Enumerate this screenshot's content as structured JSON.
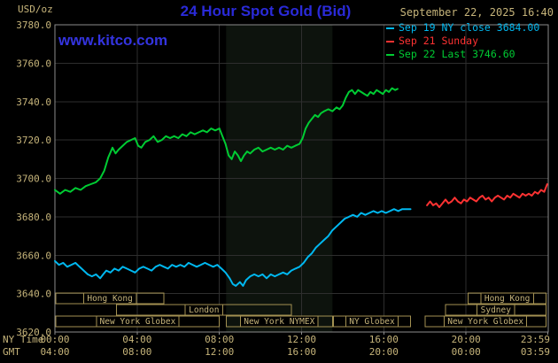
{
  "header": {
    "unit_label": "USD/oz",
    "title": "24 Hour Spot Gold (Bid)",
    "datetime": "September 22, 2025 16:40",
    "watermark": "www.kitco.com"
  },
  "legend": [
    {
      "label": "Sep 19 NY close 3684.00",
      "color": "#00b8f0"
    },
    {
      "label": "Sep 21 Sunday",
      "color": "#ff3232"
    },
    {
      "label": "Sep 22 Last 3746.60",
      "color": "#00cc33"
    }
  ],
  "axes": {
    "ny_time_label": "NY Time",
    "gmt_label": "GMT",
    "ny_ticks": [
      "00:00",
      "04:00",
      "08:00",
      "12:00",
      "16:00",
      "20:00",
      "23:59"
    ],
    "gmt_ticks": [
      "04:00",
      "08:00",
      "12:00",
      "16:00",
      "20:00",
      "00:00",
      "03:59"
    ],
    "y_ticks": [
      3780,
      3760,
      3740,
      3720,
      3700,
      3680,
      3660,
      3640,
      3620
    ]
  },
  "colors": {
    "background": "#000000",
    "title_blue": "#2a2ad8",
    "watermark_blue": "#3434e0",
    "tan": "#c6b47a",
    "session_border": "#a39152",
    "grid": "#2e2e2e",
    "border": "#8c8c8c",
    "band": "#0d130d"
  },
  "chart_data": {
    "type": "line",
    "title": "24 Hour Spot Gold (Bid)",
    "ylabel": "USD/oz",
    "ylim": [
      3620,
      3780
    ],
    "xlim_hours": [
      0,
      24
    ],
    "x_grid_hours": [
      4,
      8,
      12,
      16,
      20
    ],
    "tick_hours": [
      0,
      4,
      8,
      12,
      16,
      20,
      23.983
    ],
    "grid": true,
    "legend_position": "top-right",
    "highlight_band": {
      "start": 8.33,
      "end": 13.5
    },
    "series": [
      {
        "id": "sep19-ny-close",
        "name": "Sep 19 NY close 3684.00",
        "color": "#00b8f0",
        "last_value": 3684.0,
        "points": [
          [
            0,
            3657
          ],
          [
            0.2,
            3655
          ],
          [
            0.4,
            3656
          ],
          [
            0.6,
            3654
          ],
          [
            0.8,
            3655
          ],
          [
            1,
            3656
          ],
          [
            1.2,
            3654
          ],
          [
            1.4,
            3652
          ],
          [
            1.6,
            3650
          ],
          [
            1.8,
            3649
          ],
          [
            2,
            3650
          ],
          [
            2.2,
            3648
          ],
          [
            2.35,
            3650
          ],
          [
            2.5,
            3652
          ],
          [
            2.7,
            3651
          ],
          [
            2.9,
            3653
          ],
          [
            3.1,
            3652
          ],
          [
            3.3,
            3654
          ],
          [
            3.5,
            3653
          ],
          [
            3.7,
            3652
          ],
          [
            3.9,
            3651
          ],
          [
            4.1,
            3653
          ],
          [
            4.3,
            3654
          ],
          [
            4.5,
            3653
          ],
          [
            4.7,
            3652
          ],
          [
            4.9,
            3654
          ],
          [
            5.1,
            3655
          ],
          [
            5.3,
            3654
          ],
          [
            5.5,
            3653
          ],
          [
            5.7,
            3655
          ],
          [
            5.9,
            3654
          ],
          [
            6.1,
            3655
          ],
          [
            6.3,
            3654
          ],
          [
            6.5,
            3656
          ],
          [
            6.7,
            3655
          ],
          [
            6.9,
            3654
          ],
          [
            7.1,
            3655
          ],
          [
            7.3,
            3656
          ],
          [
            7.5,
            3655
          ],
          [
            7.7,
            3654
          ],
          [
            7.9,
            3655
          ],
          [
            8.1,
            3653
          ],
          [
            8.3,
            3651
          ],
          [
            8.5,
            3648
          ],
          [
            8.65,
            3645
          ],
          [
            8.8,
            3644
          ],
          [
            9,
            3646
          ],
          [
            9.15,
            3644
          ],
          [
            9.3,
            3647
          ],
          [
            9.5,
            3649
          ],
          [
            9.7,
            3650
          ],
          [
            9.9,
            3649
          ],
          [
            10.1,
            3650
          ],
          [
            10.3,
            3648
          ],
          [
            10.5,
            3650
          ],
          [
            10.7,
            3649
          ],
          [
            10.9,
            3650
          ],
          [
            11.1,
            3651
          ],
          [
            11.3,
            3650
          ],
          [
            11.5,
            3652
          ],
          [
            11.7,
            3653
          ],
          [
            11.9,
            3654
          ],
          [
            12.1,
            3656
          ],
          [
            12.3,
            3659
          ],
          [
            12.5,
            3661
          ],
          [
            12.7,
            3664
          ],
          [
            12.9,
            3666
          ],
          [
            13.1,
            3668
          ],
          [
            13.3,
            3670
          ],
          [
            13.5,
            3673
          ],
          [
            13.7,
            3675
          ],
          [
            13.9,
            3677
          ],
          [
            14.1,
            3679
          ],
          [
            14.3,
            3680
          ],
          [
            14.5,
            3681
          ],
          [
            14.7,
            3680
          ],
          [
            14.9,
            3682
          ],
          [
            15.1,
            3681
          ],
          [
            15.3,
            3682
          ],
          [
            15.5,
            3683
          ],
          [
            15.7,
            3682
          ],
          [
            15.9,
            3683
          ],
          [
            16.1,
            3682
          ],
          [
            16.3,
            3683
          ],
          [
            16.5,
            3684
          ],
          [
            16.7,
            3683
          ],
          [
            16.9,
            3684
          ],
          [
            17.1,
            3684
          ],
          [
            17.3,
            3684
          ]
        ]
      },
      {
        "id": "sep21-sunday",
        "name": "Sep 21 Sunday",
        "color": "#ff3232",
        "points": [
          [
            18.1,
            3686
          ],
          [
            18.25,
            3688
          ],
          [
            18.4,
            3686
          ],
          [
            18.55,
            3687
          ],
          [
            18.7,
            3685
          ],
          [
            18.85,
            3687
          ],
          [
            19,
            3689
          ],
          [
            19.15,
            3687
          ],
          [
            19.3,
            3688
          ],
          [
            19.45,
            3690
          ],
          [
            19.6,
            3688
          ],
          [
            19.75,
            3687
          ],
          [
            19.9,
            3689
          ],
          [
            20.05,
            3688
          ],
          [
            20.2,
            3690
          ],
          [
            20.35,
            3689
          ],
          [
            20.5,
            3688
          ],
          [
            20.65,
            3690
          ],
          [
            20.8,
            3691
          ],
          [
            20.95,
            3689
          ],
          [
            21.1,
            3690
          ],
          [
            21.25,
            3688
          ],
          [
            21.4,
            3690
          ],
          [
            21.55,
            3691
          ],
          [
            21.7,
            3690
          ],
          [
            21.85,
            3689
          ],
          [
            22,
            3691
          ],
          [
            22.15,
            3690
          ],
          [
            22.3,
            3692
          ],
          [
            22.45,
            3691
          ],
          [
            22.6,
            3690
          ],
          [
            22.75,
            3692
          ],
          [
            22.9,
            3691
          ],
          [
            23.05,
            3692
          ],
          [
            23.2,
            3691
          ],
          [
            23.35,
            3693
          ],
          [
            23.5,
            3692
          ],
          [
            23.65,
            3694
          ],
          [
            23.8,
            3693
          ],
          [
            23.95,
            3697
          ]
        ]
      },
      {
        "id": "sep22-last",
        "name": "Sep 22 Last 3746.60",
        "color": "#00cc33",
        "last_value": 3746.6,
        "points": [
          [
            0,
            3694
          ],
          [
            0.25,
            3692
          ],
          [
            0.5,
            3694
          ],
          [
            0.75,
            3693
          ],
          [
            1,
            3695
          ],
          [
            1.25,
            3694
          ],
          [
            1.5,
            3696
          ],
          [
            1.75,
            3697
          ],
          [
            2,
            3698
          ],
          [
            2.2,
            3700
          ],
          [
            2.4,
            3704
          ],
          [
            2.6,
            3711
          ],
          [
            2.8,
            3716
          ],
          [
            2.95,
            3713
          ],
          [
            3.1,
            3715
          ],
          [
            3.3,
            3717
          ],
          [
            3.5,
            3719
          ],
          [
            3.7,
            3720
          ],
          [
            3.9,
            3721
          ],
          [
            4.05,
            3717
          ],
          [
            4.2,
            3716
          ],
          [
            4.4,
            3719
          ],
          [
            4.6,
            3720
          ],
          [
            4.8,
            3722
          ],
          [
            5,
            3719
          ],
          [
            5.2,
            3720
          ],
          [
            5.4,
            3722
          ],
          [
            5.6,
            3721
          ],
          [
            5.8,
            3722
          ],
          [
            6,
            3721
          ],
          [
            6.2,
            3723
          ],
          [
            6.4,
            3722
          ],
          [
            6.6,
            3724
          ],
          [
            6.8,
            3723
          ],
          [
            7,
            3724
          ],
          [
            7.2,
            3725
          ],
          [
            7.4,
            3724
          ],
          [
            7.6,
            3726
          ],
          [
            7.8,
            3725
          ],
          [
            8,
            3726
          ],
          [
            8.15,
            3722
          ],
          [
            8.3,
            3718
          ],
          [
            8.45,
            3712
          ],
          [
            8.6,
            3710
          ],
          [
            8.75,
            3714
          ],
          [
            8.9,
            3712
          ],
          [
            9.05,
            3709
          ],
          [
            9.2,
            3712
          ],
          [
            9.35,
            3714
          ],
          [
            9.5,
            3713
          ],
          [
            9.7,
            3715
          ],
          [
            9.9,
            3716
          ],
          [
            10.1,
            3714
          ],
          [
            10.3,
            3715
          ],
          [
            10.5,
            3716
          ],
          [
            10.7,
            3715
          ],
          [
            10.9,
            3716
          ],
          [
            11.1,
            3715
          ],
          [
            11.3,
            3717
          ],
          [
            11.5,
            3716
          ],
          [
            11.7,
            3717
          ],
          [
            11.9,
            3718
          ],
          [
            12.05,
            3721
          ],
          [
            12.2,
            3726
          ],
          [
            12.35,
            3729
          ],
          [
            12.5,
            3731
          ],
          [
            12.65,
            3733
          ],
          [
            12.8,
            3732
          ],
          [
            12.95,
            3734
          ],
          [
            13.1,
            3735
          ],
          [
            13.3,
            3736
          ],
          [
            13.5,
            3735
          ],
          [
            13.7,
            3737
          ],
          [
            13.85,
            3736
          ],
          [
            14,
            3738
          ],
          [
            14.15,
            3742
          ],
          [
            14.3,
            3745
          ],
          [
            14.45,
            3746
          ],
          [
            14.6,
            3744
          ],
          [
            14.75,
            3746
          ],
          [
            14.9,
            3745
          ],
          [
            15.05,
            3744
          ],
          [
            15.2,
            3743
          ],
          [
            15.35,
            3745
          ],
          [
            15.5,
            3744
          ],
          [
            15.65,
            3746
          ],
          [
            15.8,
            3745
          ],
          [
            15.95,
            3744
          ],
          [
            16.1,
            3746
          ],
          [
            16.25,
            3745
          ],
          [
            16.4,
            3747
          ],
          [
            16.55,
            3746
          ],
          [
            16.67,
            3746.6
          ]
        ]
      }
    ],
    "sessions": [
      {
        "row": 0,
        "label": "Hong Kong",
        "start": 0.05,
        "end": 5.3
      },
      {
        "row": 0,
        "label": "Hong Kong",
        "start": 20.1,
        "end": 23.9
      },
      {
        "row": 1,
        "label": "London",
        "start": 3.0,
        "end": 11.5
      },
      {
        "row": 1,
        "label": "Sydney",
        "start": 19.0,
        "end": 23.9
      },
      {
        "row": 2,
        "label": "New York Globex",
        "start": 0.05,
        "end": 8.0
      },
      {
        "row": 2,
        "label": "New York NYMEX",
        "start": 8.33,
        "end": 13.5
      },
      {
        "row": 2,
        "label": "NY Globex",
        "start": 13.55,
        "end": 17.3
      },
      {
        "row": 2,
        "label": "New York Globex",
        "start": 18.0,
        "end": 23.9
      }
    ]
  }
}
